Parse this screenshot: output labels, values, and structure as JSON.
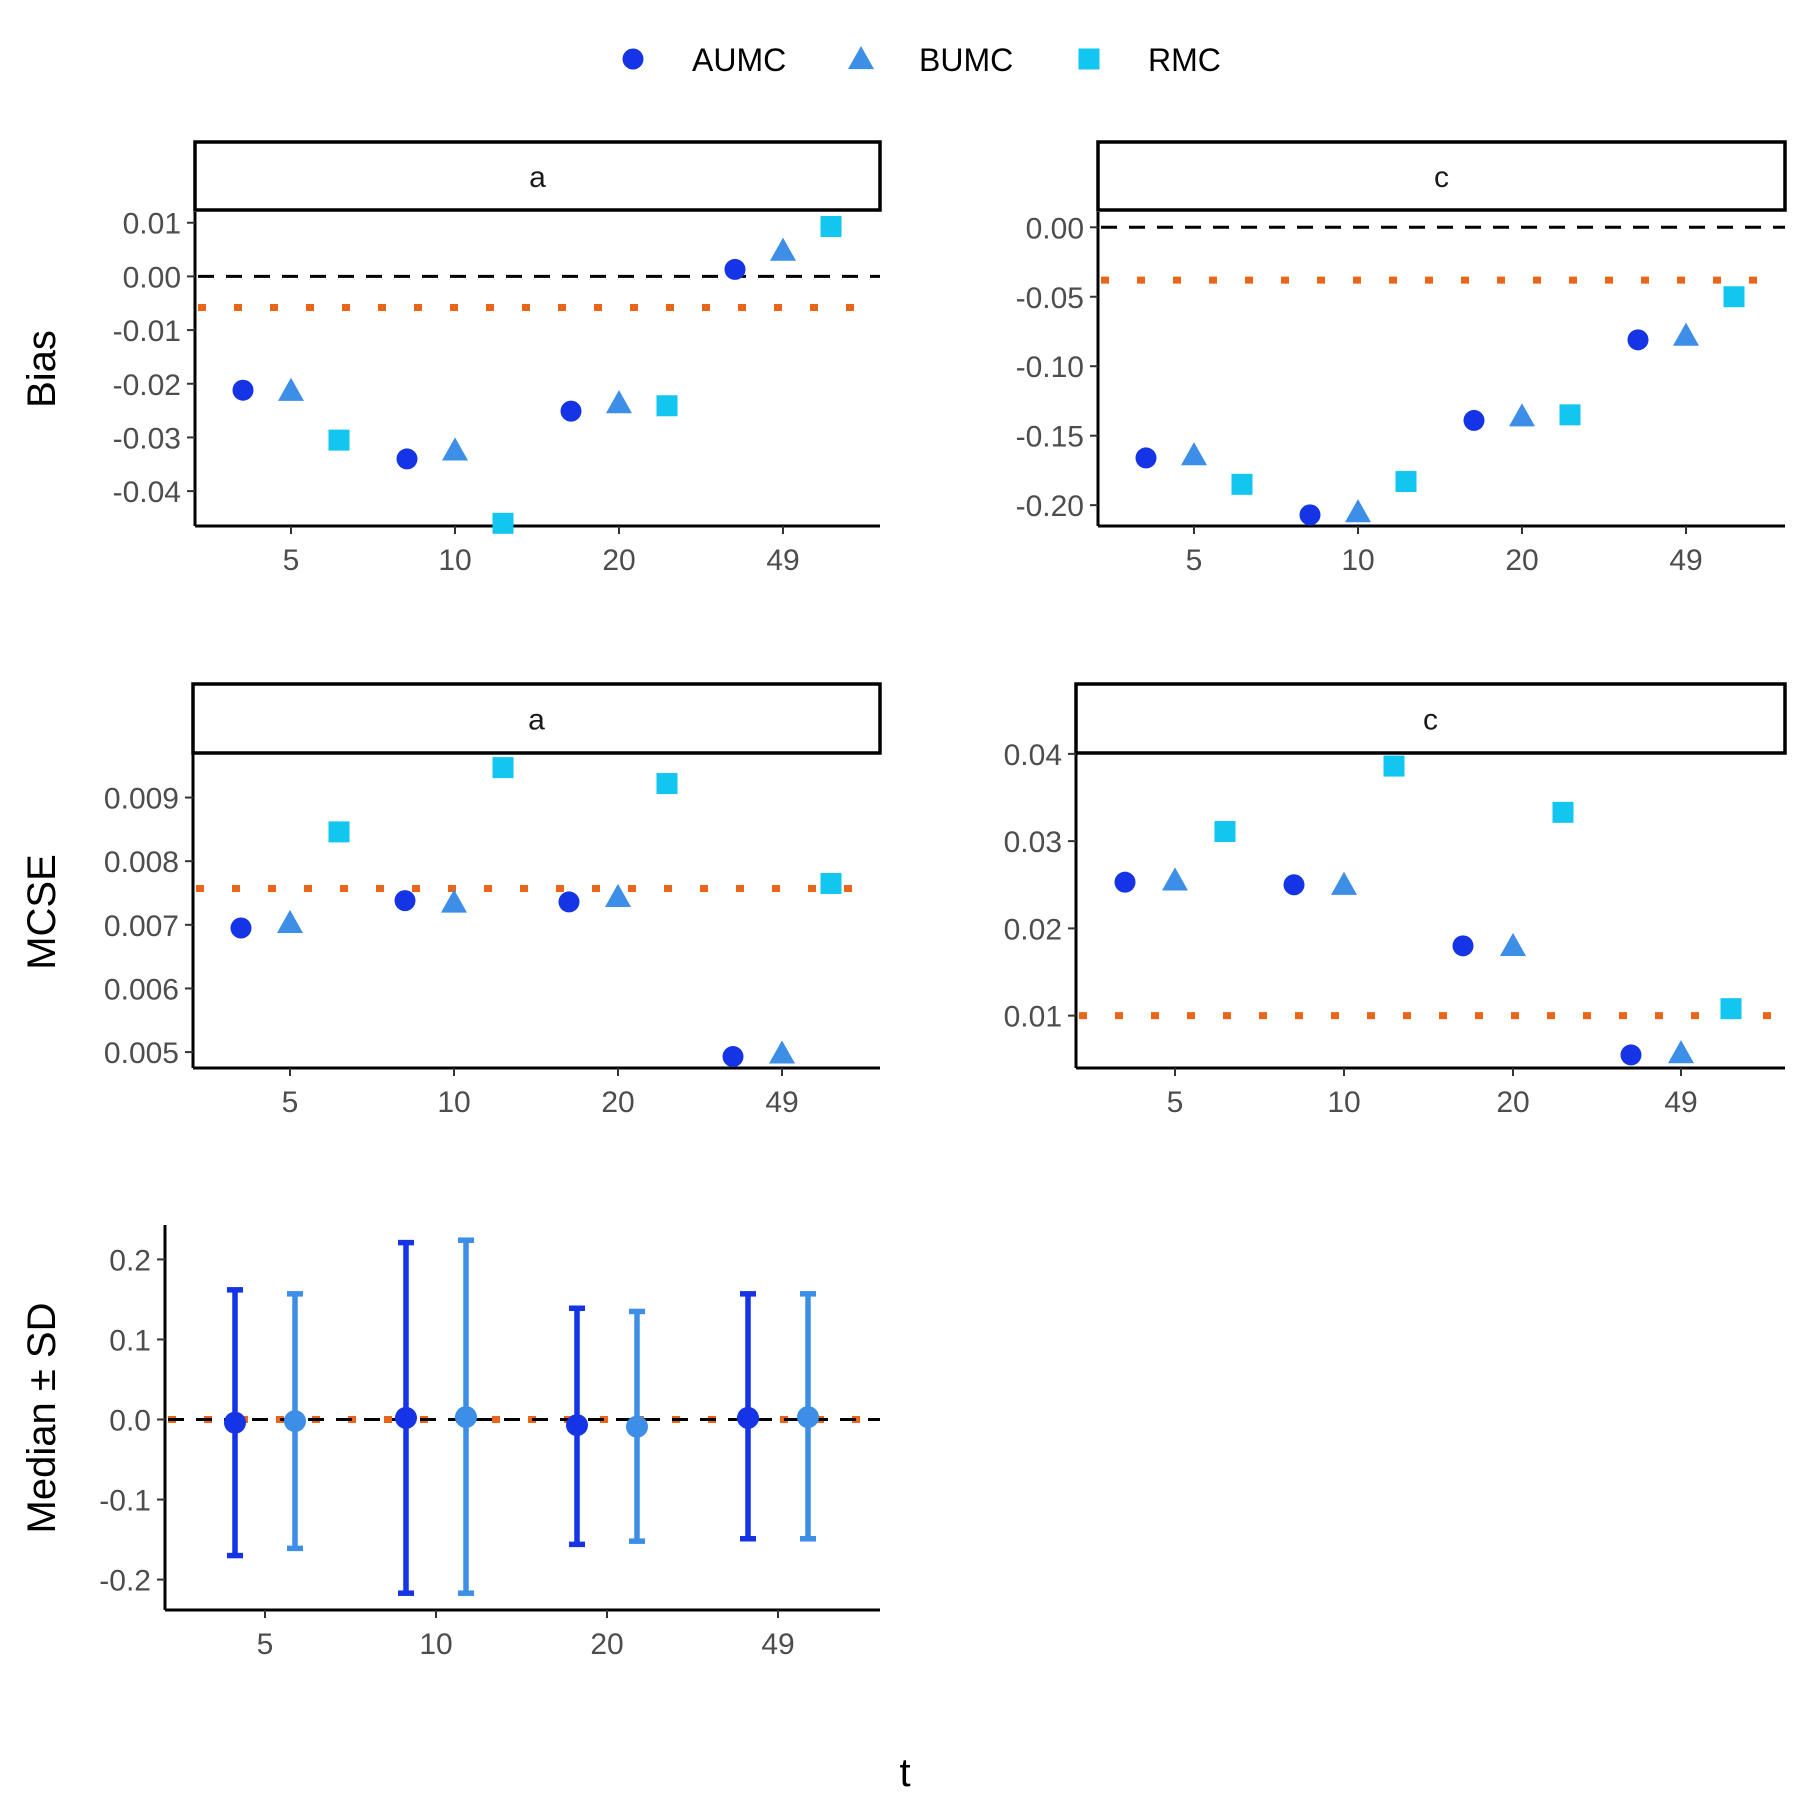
{
  "legend": {
    "entries": [
      {
        "name": "AUMC",
        "shape": "circle",
        "color": "#1434e6"
      },
      {
        "name": "BUMC",
        "shape": "triangle",
        "color": "#3c8ee6"
      },
      {
        "name": "RMC",
        "shape": "square",
        "color": "#12c6ef"
      }
    ]
  },
  "colors": {
    "reference_line": "#000000",
    "mean_line": "#e8651a"
  },
  "x_axis_title": "t",
  "chart_data": [
    {
      "id": "bias-a",
      "type": "scatter",
      "strip": "a",
      "ylabel": "Bias",
      "categories": [
        "5",
        "10",
        "20",
        "49"
      ],
      "ylim": [
        -0.0465,
        0.012
      ],
      "yticks": [
        0.01,
        0.0,
        -0.01,
        -0.02,
        -0.03,
        -0.04
      ],
      "ytick_labels": [
        "0.01",
        "0.00",
        "-0.01",
        "-0.02",
        "-0.03",
        "-0.04"
      ],
      "reference_line": 0.0,
      "mean_line": -0.0058,
      "series": [
        {
          "name": "AUMC",
          "values": [
            -0.0212,
            -0.034,
            -0.0251,
            0.0013
          ]
        },
        {
          "name": "BUMC",
          "values": [
            -0.0213,
            -0.0324,
            -0.0236,
            0.0048
          ]
        },
        {
          "name": "RMC",
          "values": [
            -0.0305,
            -0.046,
            -0.0241,
            0.0093
          ]
        }
      ]
    },
    {
      "id": "bias-c",
      "type": "scatter",
      "strip": "c",
      "ylabel": "",
      "categories": [
        "5",
        "10",
        "20",
        "49"
      ],
      "ylim": [
        -0.215,
        0.011
      ],
      "yticks": [
        0.0,
        -0.05,
        -0.1,
        -0.15,
        -0.2
      ],
      "ytick_labels": [
        "0.00",
        "-0.05",
        "-0.10",
        "-0.15",
        "-0.20"
      ],
      "reference_line": 0.0,
      "mean_line": -0.038,
      "series": [
        {
          "name": "AUMC",
          "values": [
            -0.166,
            -0.207,
            -0.139,
            -0.081
          ]
        },
        {
          "name": "BUMC",
          "values": [
            -0.164,
            -0.205,
            -0.136,
            -0.078
          ]
        },
        {
          "name": "RMC",
          "values": [
            -0.185,
            -0.183,
            -0.135,
            -0.05
          ]
        }
      ]
    },
    {
      "id": "mcse-a",
      "type": "scatter",
      "strip": "a",
      "ylabel": "MCSE",
      "categories": [
        "5",
        "10",
        "20",
        "49"
      ],
      "ylim": [
        0.00475,
        0.0097
      ],
      "yticks": [
        0.009,
        0.008,
        0.007,
        0.006,
        0.005
      ],
      "ytick_labels": [
        "0.009",
        "0.008",
        "0.007",
        "0.006",
        "0.005"
      ],
      "mean_line": 0.00757,
      "series": [
        {
          "name": "AUMC",
          "values": [
            0.00695,
            0.00738,
            0.00736,
            0.00493
          ]
        },
        {
          "name": "BUMC",
          "values": [
            0.00703,
            0.00735,
            0.00744,
            0.00498
          ]
        },
        {
          "name": "RMC",
          "values": [
            0.00846,
            0.00947,
            0.00922,
            0.00765
          ]
        }
      ]
    },
    {
      "id": "mcse-c",
      "type": "scatter",
      "strip": "c",
      "ylabel": "",
      "categories": [
        "5",
        "10",
        "20",
        "49"
      ],
      "ylim": [
        0.004,
        0.0401
      ],
      "yticks": [
        0.04,
        0.03,
        0.02,
        0.01
      ],
      "ytick_labels": [
        "0.04",
        "0.03",
        "0.02",
        "0.01"
      ],
      "mean_line": 0.01,
      "series": [
        {
          "name": "AUMC",
          "values": [
            0.0253,
            0.025,
            0.018,
            0.0055
          ]
        },
        {
          "name": "BUMC",
          "values": [
            0.0255,
            0.025,
            0.018,
            0.0057
          ]
        },
        {
          "name": "RMC",
          "values": [
            0.0311,
            0.0386,
            0.0333,
            0.0108
          ]
        }
      ]
    },
    {
      "id": "median-sd",
      "type": "errorbar",
      "strip": "",
      "ylabel": "Median ± SD",
      "categories": [
        "5",
        "10",
        "20",
        "49"
      ],
      "ylim": [
        -0.238,
        0.243
      ],
      "yticks": [
        0.2,
        0.1,
        0.0,
        -0.1,
        -0.2
      ],
      "ytick_labels": [
        "0.2",
        "0.1",
        "0.0",
        "-0.1",
        "-0.2"
      ],
      "reference_line": 0.0,
      "mean_line": 0.0,
      "series": [
        {
          "name": "AUMC",
          "median": [
            -0.004,
            0.002,
            -0.007,
            0.002
          ],
          "lower": [
            -0.17,
            -0.217,
            -0.156,
            -0.149
          ],
          "upper": [
            0.162,
            0.221,
            0.139,
            0.157
          ]
        },
        {
          "name": "BUMC",
          "median": [
            -0.002,
            0.003,
            -0.009,
            0.003
          ],
          "lower": [
            -0.161,
            -0.217,
            -0.152,
            -0.149
          ],
          "upper": [
            0.157,
            0.224,
            0.135,
            0.157
          ]
        }
      ]
    }
  ]
}
